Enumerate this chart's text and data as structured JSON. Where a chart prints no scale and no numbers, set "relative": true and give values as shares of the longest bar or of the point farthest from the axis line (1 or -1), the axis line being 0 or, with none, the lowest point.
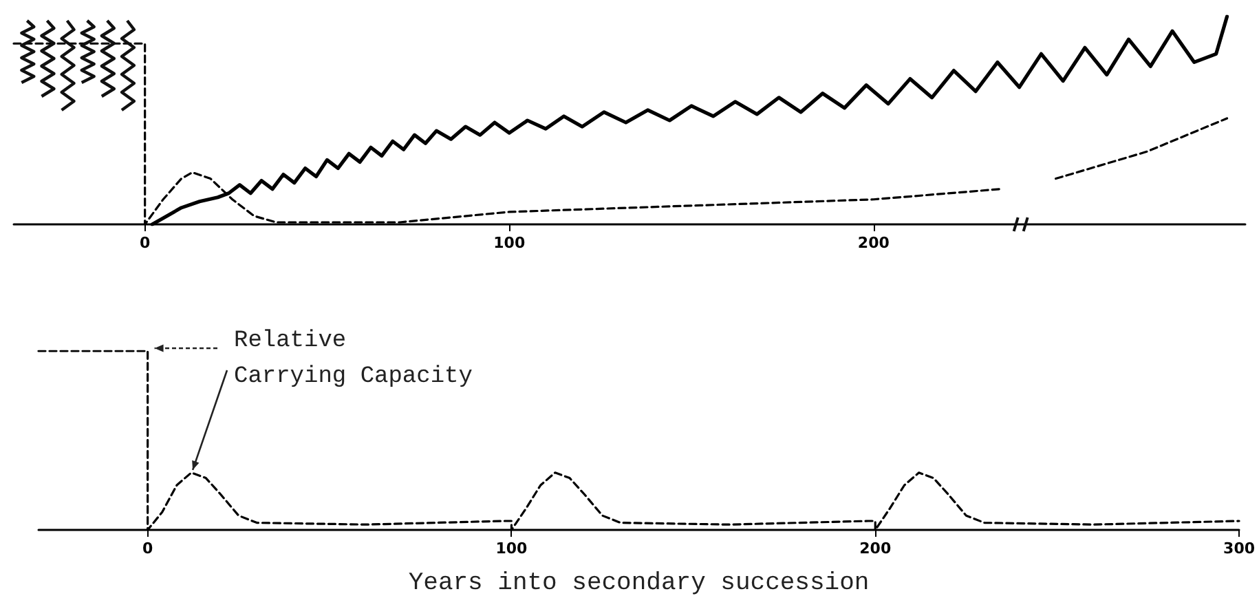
{
  "chart_data": [
    {
      "type": "line",
      "relative": true,
      "marker": "none",
      "xlim": [
        -36,
        302
      ],
      "xticks": [
        0,
        100,
        200
      ],
      "series": [
        {
          "color": "#000000",
          "line_style": "dashed",
          "x": [
            -36,
            0,
            0,
            5,
            10,
            13,
            18,
            24,
            30,
            36,
            70,
            100,
            150,
            200,
            235,
            242,
            250,
            275,
            297
          ],
          "values": [
            0.87,
            0.87,
            0,
            0.12,
            0.22,
            0.25,
            0.22,
            0.12,
            0.04,
            0.01,
            0.01,
            0.06,
            0.09,
            0.12,
            0.17,
            null,
            0.22,
            0.35,
            0.51
          ]
        },
        {
          "color": "#000000",
          "line_style": "solid",
          "x": [
            2,
            5,
            10,
            15,
            20,
            23,
            26,
            29,
            32,
            35,
            38,
            41,
            44,
            47,
            50,
            53,
            56,
            59,
            62,
            65,
            68,
            71,
            74,
            77,
            80,
            84,
            88,
            92,
            96,
            100,
            105,
            110,
            115,
            120,
            126,
            132,
            138,
            144,
            150,
            156,
            162,
            168,
            174,
            180,
            186,
            192,
            198,
            204,
            210,
            216,
            222,
            228,
            234,
            240,
            246,
            252,
            258,
            264,
            270,
            276,
            282,
            288,
            294,
            297
          ],
          "values": [
            0,
            0.03,
            0.08,
            0.11,
            0.13,
            0.15,
            0.19,
            0.15,
            0.21,
            0.17,
            0.24,
            0.2,
            0.27,
            0.23,
            0.31,
            0.27,
            0.34,
            0.3,
            0.37,
            0.33,
            0.4,
            0.36,
            0.43,
            0.39,
            0.45,
            0.41,
            0.47,
            0.43,
            0.49,
            0.44,
            0.5,
            0.46,
            0.52,
            0.47,
            0.54,
            0.49,
            0.55,
            0.5,
            0.57,
            0.52,
            0.59,
            0.53,
            0.61,
            0.54,
            0.63,
            0.56,
            0.67,
            0.58,
            0.7,
            0.61,
            0.74,
            0.64,
            0.78,
            0.66,
            0.82,
            0.69,
            0.85,
            0.72,
            0.89,
            0.76,
            0.93,
            0.78,
            0.82,
            1.0
          ]
        }
      ]
    },
    {
      "type": "line",
      "relative": true,
      "marker": "none",
      "xlim": [
        -30,
        300
      ],
      "xticks": [
        0,
        100,
        200,
        300
      ],
      "xlabel": "Years into secondary succession",
      "annotations": [
        {
          "text": "Relative\nCarrying Capacity",
          "x": 12,
          "y": 0.32
        }
      ],
      "series": [
        {
          "color": "#000000",
          "line_style": "dashed",
          "x": [
            -30,
            0,
            0,
            4,
            8,
            12,
            16,
            20,
            25,
            30,
            60,
            98,
            100,
            100,
            104,
            108,
            112,
            116,
            120,
            125,
            130,
            160,
            198,
            200,
            200,
            204,
            208,
            212,
            216,
            220,
            225,
            230,
            260,
            300
          ],
          "values": [
            1,
            1,
            0,
            0.1,
            0.25,
            0.32,
            0.29,
            0.2,
            0.08,
            0.04,
            0.03,
            0.05,
            0.05,
            0,
            0.12,
            0.25,
            0.32,
            0.29,
            0.2,
            0.08,
            0.04,
            0.03,
            0.05,
            0.05,
            0,
            0.12,
            0.25,
            0.32,
            0.29,
            0.2,
            0.08,
            0.04,
            0.03,
            0.05
          ]
        }
      ]
    }
  ]
}
